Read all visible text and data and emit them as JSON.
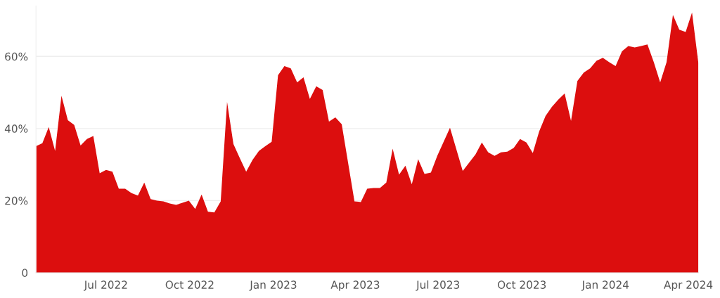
{
  "chart_data": {
    "type": "area",
    "x": [
      "2022-04-15",
      "2022-04-22",
      "2022-04-29",
      "2022-05-06",
      "2022-05-13",
      "2022-05-20",
      "2022-05-27",
      "2022-06-03",
      "2022-06-10",
      "2022-06-17",
      "2022-06-24",
      "2022-07-01",
      "2022-07-08",
      "2022-07-15",
      "2022-07-22",
      "2022-07-29",
      "2022-08-05",
      "2022-08-12",
      "2022-08-19",
      "2022-08-26",
      "2022-09-02",
      "2022-09-09",
      "2022-09-16",
      "2022-09-23",
      "2022-09-30",
      "2022-10-07",
      "2022-10-14",
      "2022-10-21",
      "2022-10-28",
      "2022-11-04",
      "2022-11-11",
      "2022-11-18",
      "2022-11-25",
      "2022-12-02",
      "2022-12-09",
      "2022-12-16",
      "2022-12-23",
      "2022-12-30",
      "2023-01-06",
      "2023-01-13",
      "2023-01-20",
      "2023-01-27",
      "2023-02-03",
      "2023-02-10",
      "2023-02-17",
      "2023-02-24",
      "2023-03-03",
      "2023-03-10",
      "2023-03-17",
      "2023-03-31",
      "2023-04-07",
      "2023-04-14",
      "2023-04-21",
      "2023-04-28",
      "2023-05-05",
      "2023-05-12",
      "2023-05-19",
      "2023-05-26",
      "2023-06-02",
      "2023-06-09",
      "2023-06-16",
      "2023-06-23",
      "2023-06-30",
      "2023-07-14",
      "2023-07-28",
      "2023-08-04",
      "2023-08-11",
      "2023-08-18",
      "2023-08-25",
      "2023-09-01",
      "2023-09-08",
      "2023-09-15",
      "2023-09-22",
      "2023-09-29",
      "2023-10-06",
      "2023-10-13",
      "2023-10-20",
      "2023-10-27",
      "2023-11-03",
      "2023-11-10",
      "2023-11-17",
      "2023-11-24",
      "2023-12-01",
      "2023-12-08",
      "2023-12-15",
      "2023-12-22",
      "2023-12-29",
      "2024-01-05",
      "2024-01-12",
      "2024-01-19",
      "2024-01-26",
      "2024-02-02",
      "2024-02-09",
      "2024-02-16",
      "2024-02-23",
      "2024-03-01",
      "2024-03-08",
      "2024-03-15",
      "2024-03-22",
      "2024-03-29",
      "2024-04-05",
      "2024-04-12"
    ],
    "series": [
      {
        "color": "#dc0e0e",
        "values": [
          35.1,
          35.9,
          40.4,
          33.8,
          49.1,
          42.3,
          41.0,
          35.3,
          37.1,
          37.9,
          27.6,
          28.5,
          28.0,
          23.3,
          23.3,
          22.1,
          21.4,
          25.0,
          20.4,
          20.0,
          19.8,
          19.2,
          18.8,
          19.4,
          20.0,
          17.7,
          21.7,
          16.9,
          16.7,
          19.8,
          47.4,
          35.7,
          31.8,
          28.0,
          31.3,
          33.8,
          35.1,
          36.3,
          54.8,
          57.3,
          56.7,
          52.8,
          54.2,
          48.2,
          51.7,
          50.7,
          41.9,
          43.1,
          41.2,
          19.8,
          19.6,
          23.3,
          23.5,
          23.5,
          25.0,
          34.4,
          27.2,
          29.7,
          24.5,
          31.5,
          27.4,
          27.8,
          32.4,
          40.2,
          28.2,
          30.5,
          32.8,
          36.1,
          33.4,
          32.4,
          33.4,
          33.6,
          34.6,
          37.1,
          36.1,
          33.2,
          39.2,
          43.5,
          46.0,
          48.0,
          49.7,
          42.1,
          53.2,
          55.5,
          56.7,
          58.8,
          59.6,
          58.4,
          57.3,
          61.4,
          62.9,
          62.5,
          62.9,
          63.3,
          58.4,
          52.8,
          58.4,
          71.5,
          67.4,
          66.8,
          72.2,
          58.1
        ]
      }
    ],
    "xlim": [
      "2022-04-15",
      "2024-04-12"
    ],
    "xticks": [
      {
        "value": "2022-07-01",
        "label": "Jul 2022"
      },
      {
        "value": "2022-10-01",
        "label": "Oct 2022"
      },
      {
        "value": "2023-01-01",
        "label": "Jan 2023"
      },
      {
        "value": "2023-04-01",
        "label": "Apr 2023"
      },
      {
        "value": "2023-07-01",
        "label": "Jul 2023"
      },
      {
        "value": "2023-10-01",
        "label": "Oct 2023"
      },
      {
        "value": "2024-01-01",
        "label": "Jan 2024"
      },
      {
        "value": "2024-04-01",
        "label": "Apr 2024"
      }
    ],
    "ylim": [
      0,
      74
    ],
    "yticks": [
      0,
      {
        "value": 20,
        "label": "20%"
      },
      {
        "value": 40,
        "label": "40%"
      },
      {
        "value": 60,
        "label": "60%"
      }
    ],
    "grid": "y"
  }
}
